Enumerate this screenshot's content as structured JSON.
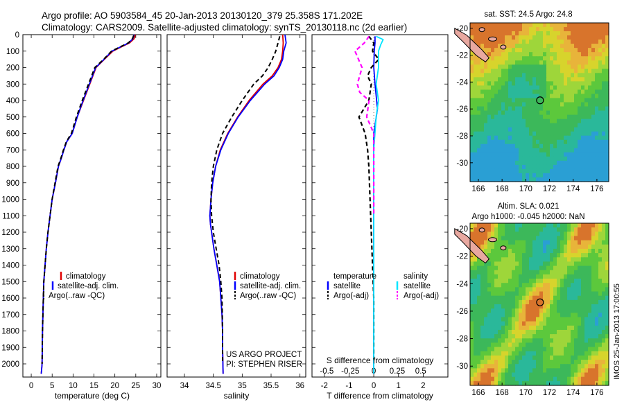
{
  "header": {
    "line1": "Argo profile: AO 5903584_45 20-Jan-2013 20130120_379 25.358S 171.202E",
    "line2": "Climatology: CARS2009. Satellite-adjusted climatology: synTS_20130118.nc (2d earlier)"
  },
  "colors": {
    "climatology": "#e00000",
    "satellite": "#0000ff",
    "argo": "#000000",
    "s_satellite": "#00e5ff",
    "s_argo": "#ff00ff",
    "land": "#e8a8a0"
  },
  "chart_data": [
    {
      "type": "line",
      "xlabel": "temperature (deg C)",
      "ylabel": "",
      "xlim": [
        -2,
        31
      ],
      "ylim": [
        2080,
        0
      ],
      "y_inverted": true,
      "xticks": [
        0,
        5,
        10,
        15,
        20,
        25,
        30
      ],
      "yticks": [
        0,
        100,
        200,
        300,
        400,
        500,
        600,
        700,
        800,
        900,
        1000,
        1100,
        1200,
        1300,
        1400,
        1500,
        1600,
        1700,
        1800,
        1900,
        2000
      ],
      "series": [
        {
          "name": "climatology",
          "color": "#e00000",
          "dash": "solid",
          "x": [
            24.9,
            24.6,
            23.5,
            21.5,
            19.5,
            17.5,
            15.5,
            14.0,
            12.5,
            11.0,
            9.8,
            8.5,
            7.8,
            7.2,
            6.5,
            5.8,
            5.0,
            4.5,
            4.0,
            3.6,
            3.3,
            3.0,
            2.9,
            2.7,
            2.6,
            2.4
          ],
          "y": [
            0,
            25,
            50,
            75,
            100,
            150,
            200,
            300,
            400,
            500,
            600,
            650,
            700,
            750,
            800,
            900,
            1000,
            1100,
            1200,
            1300,
            1400,
            1500,
            1600,
            1800,
            2000,
            2060
          ]
        },
        {
          "name": "satellite-adj. clim.",
          "color": "#0000ff",
          "dash": "solid",
          "x": [
            24.6,
            24.3,
            23.3,
            21.3,
            19.3,
            17.4,
            15.4,
            13.9,
            12.4,
            11.0,
            9.8,
            8.5,
            7.8,
            7.2,
            6.5,
            5.8,
            5.0,
            4.5,
            4.0,
            3.6,
            3.3,
            3.0,
            2.9,
            2.7,
            2.6,
            2.4
          ],
          "y": [
            0,
            25,
            50,
            75,
            100,
            150,
            200,
            300,
            400,
            500,
            600,
            650,
            700,
            750,
            800,
            900,
            1000,
            1100,
            1200,
            1300,
            1400,
            1500,
            1600,
            1800,
            2000,
            2060
          ]
        },
        {
          "name": "Argo(..raw -QC)",
          "color": "#000000",
          "dash": "dashed",
          "x": [
            24.5,
            24.2,
            23.2,
            21.2,
            19.2,
            17.3,
            15.2,
            13.7,
            12.2,
            10.8,
            9.6,
            8.4,
            7.7,
            7.1,
            6.4,
            5.7,
            5.0,
            4.5,
            4.0,
            3.6,
            3.3,
            3.0,
            2.9,
            2.7,
            2.6
          ],
          "y": [
            5,
            25,
            50,
            75,
            100,
            150,
            200,
            300,
            400,
            500,
            600,
            650,
            700,
            750,
            800,
            900,
            1000,
            1100,
            1200,
            1300,
            1400,
            1500,
            1600,
            1800,
            2000
          ]
        }
      ],
      "legend": {
        "items": [
          "climatology",
          "satellite-adj. clim.",
          "Argo(..raw -QC)"
        ],
        "placement": "lower-center"
      }
    },
    {
      "type": "line",
      "xlabel": "salinity",
      "xlim": [
        33.7,
        36.1
      ],
      "ylim": [
        2080,
        0
      ],
      "y_inverted": true,
      "xticks": [
        34,
        34.5,
        35,
        35.5,
        36
      ],
      "series": [
        {
          "name": "climatology",
          "color": "#e00000",
          "dash": "solid",
          "x": [
            35.7,
            35.71,
            35.7,
            35.68,
            35.62,
            35.52,
            35.36,
            35.12,
            34.92,
            34.75,
            34.62,
            34.54,
            34.49,
            34.46,
            34.44,
            34.45,
            34.47,
            34.51,
            34.56,
            34.61,
            34.63,
            34.65,
            34.66,
            34.66,
            34.67
          ],
          "y": [
            0,
            50,
            100,
            150,
            200,
            250,
            300,
            400,
            500,
            600,
            700,
            800,
            900,
            1000,
            1100,
            1150,
            1200,
            1300,
            1400,
            1500,
            1600,
            1700,
            1800,
            1900,
            2060
          ]
        },
        {
          "name": "satellite-adj. clim.",
          "color": "#0000ff",
          "dash": "solid",
          "x": [
            35.74,
            35.76,
            35.72,
            35.7,
            35.64,
            35.55,
            35.39,
            35.14,
            34.93,
            34.76,
            34.63,
            34.54,
            34.49,
            34.46,
            34.44,
            34.45,
            34.47,
            34.51,
            34.56,
            34.61,
            34.63,
            34.65,
            34.66,
            34.66,
            34.67
          ],
          "y": [
            0,
            50,
            100,
            150,
            200,
            250,
            300,
            400,
            500,
            600,
            700,
            800,
            900,
            1000,
            1100,
            1150,
            1200,
            1300,
            1400,
            1500,
            1600,
            1700,
            1800,
            1900,
            2060
          ]
        },
        {
          "name": "Argo(..raw -QC)",
          "color": "#000000",
          "dash": "dashed",
          "x": [
            35.65,
            35.62,
            35.58,
            35.52,
            35.45,
            35.35,
            35.2,
            35.0,
            34.82,
            34.66,
            34.56,
            34.5,
            34.47,
            34.46,
            34.47,
            34.5,
            34.55,
            34.6,
            34.63,
            34.65,
            34.66,
            34.66
          ],
          "y": [
            10,
            50,
            100,
            150,
            200,
            250,
            300,
            400,
            500,
            600,
            700,
            800,
            900,
            1000,
            1100,
            1200,
            1300,
            1400,
            1500,
            1600,
            1800,
            2000
          ]
        }
      ],
      "legend": {
        "items": [
          "climatology",
          "satellite-adj. clim.",
          "Argo(..raw -QC)"
        ],
        "placement": "lower-center"
      },
      "annotations": [
        "US ARGO PROJECT",
        "PI: STEPHEN RISER"
      ]
    },
    {
      "type": "line",
      "xlabel": "T difference from climatology",
      "xlabel_top": "S difference from climatology",
      "xlim": [
        -2.5,
        3
      ],
      "ylim": [
        2080,
        0
      ],
      "y_inverted": true,
      "xticks_T": [
        -2,
        -1,
        0,
        1,
        2
      ],
      "xticks_S": [
        -0.5,
        -0.25,
        0,
        0.25,
        0.5
      ],
      "series": [
        {
          "name": "temperature satellite",
          "color": "#0000ff",
          "dash": "solid",
          "x": [
            0.05,
            0.05,
            0.02,
            0.0,
            0.05,
            0.15,
            0.1,
            0.05,
            0.0,
            0.0,
            0.0,
            0.0,
            0.0,
            0.0
          ],
          "y": [
            10,
            50,
            100,
            200,
            300,
            450,
            500,
            550,
            600,
            800,
            1000,
            1400,
            1800,
            2060
          ]
        },
        {
          "name": "temperature Argo(-adj)",
          "color": "#000000",
          "dash": "dashed",
          "x": [
            -0.2,
            0.0,
            -0.05,
            0.2,
            -0.1,
            -0.25,
            -0.1,
            -0.2,
            -0.6,
            -0.35,
            -0.3,
            -0.25,
            -0.2,
            -0.15,
            -0.1,
            -0.05,
            0.0,
            0.0
          ],
          "y": [
            10,
            50,
            100,
            150,
            200,
            250,
            300,
            400,
            500,
            600,
            650,
            700,
            800,
            1000,
            1200,
            1400,
            1600,
            2000
          ]
        },
        {
          "name": "salinity satellite",
          "color": "#00e5ff",
          "dash": "solid",
          "x": [
            0.05,
            0.2,
            0.15,
            0.1,
            0.1,
            0.05,
            0.1,
            0.05,
            0.0,
            0.0,
            0.0,
            0.0
          ],
          "y": [
            10,
            30,
            60,
            100,
            200,
            300,
            400,
            500,
            700,
            1000,
            1500,
            2060
          ]
        },
        {
          "name": "salinity Argo(-adj)",
          "color": "#ff00ff",
          "dash": "dashed",
          "x": [
            -0.1,
            -0.2,
            -0.4,
            -0.25,
            -0.35,
            -0.3,
            -0.1,
            -0.15,
            0.0,
            0.0,
            0.0,
            0.0
          ],
          "y": [
            10,
            50,
            100,
            200,
            300,
            350,
            400,
            500,
            600,
            700,
            1000,
            1100
          ]
        }
      ],
      "legend_temperature": {
        "title": "temperature",
        "items": [
          "satellite",
          "Argo(-adj)"
        ]
      },
      "legend_salinity": {
        "title": "salinity",
        "items": [
          "satellite",
          "Argo(-adj)"
        ]
      }
    },
    {
      "type": "heatmap",
      "title": "sat. SST: 24.5 Argo: 24.8",
      "xticks": [
        166,
        168,
        170,
        172,
        174,
        176
      ],
      "yticks": [
        -20,
        -22,
        -24,
        -26,
        -28,
        -30
      ],
      "xlim": [
        165.3,
        177
      ],
      "ylim": [
        -31.4,
        -19.6
      ],
      "marker": {
        "lon": 171.202,
        "lat": -25.358
      }
    },
    {
      "type": "heatmap",
      "title": "Altim. SLA: 0.021",
      "subtitle": "Argo h1000: -0.045 h2000: NaN",
      "xticks": [
        166,
        168,
        170,
        172,
        174,
        176
      ],
      "yticks": [
        -20,
        -22,
        -24,
        -26,
        -28,
        -30
      ],
      "xlim": [
        165.3,
        177
      ],
      "ylim": [
        -31.4,
        -19.6
      ],
      "marker": {
        "lon": 171.202,
        "lat": -25.358
      }
    }
  ],
  "depth_ticks": [
    "0",
    "100",
    "200",
    "300",
    "400",
    "500",
    "600",
    "700",
    "800",
    "900",
    "1000",
    "1100",
    "1200",
    "1300",
    "1400",
    "1500",
    "1600",
    "1700",
    "1800",
    "1900",
    "2000"
  ],
  "temp_legend": [
    "climatology",
    "satellite-adj. clim.",
    "Argo(..raw -QC)"
  ],
  "sal_legend": [
    "climatology",
    "satellite-adj. clim.",
    "Argo(..raw -QC)"
  ],
  "diff_legend": {
    "t_title": "temperature",
    "s_title": "salinity",
    "t_sat": "satellite",
    "t_argo": "Argo(-adj)",
    "s_sat": "satellite",
    "s_argo": "Argo(-adj)"
  },
  "credit": {
    "project": "US ARGO PROJECT",
    "pi": "PI: STEPHEN RISER"
  },
  "map1": {
    "title": "sat. SST: 24.5 Argo: 24.8"
  },
  "map2": {
    "title": "Altim. SLA: 0.021",
    "subtitle": "Argo h1000: -0.045 h2000: NaN"
  },
  "side_stamp": "IMOS 25-Jan-2013 17:00:55",
  "axes": {
    "temp_label": "temperature (deg C)",
    "sal_label": "salinity",
    "t_diff_label": "T difference from climatology",
    "s_diff_label": "S difference from climatology",
    "t_diff_ticks": [
      "-2",
      "-1",
      "0",
      "1",
      "2"
    ],
    "s_diff_ticks": [
      "-0.5",
      "-0.25",
      "0",
      "0.25",
      "0.5"
    ],
    "temp_ticks": [
      "0",
      "5",
      "10",
      "15",
      "20",
      "25",
      "30"
    ],
    "sal_ticks": [
      "34",
      "34.5",
      "35",
      "35.5",
      "36"
    ],
    "lon_ticks": [
      "166",
      "168",
      "170",
      "172",
      "174",
      "176"
    ],
    "lat_ticks": [
      "-20",
      "-22",
      "-24",
      "-26",
      "-28",
      "-30"
    ]
  }
}
